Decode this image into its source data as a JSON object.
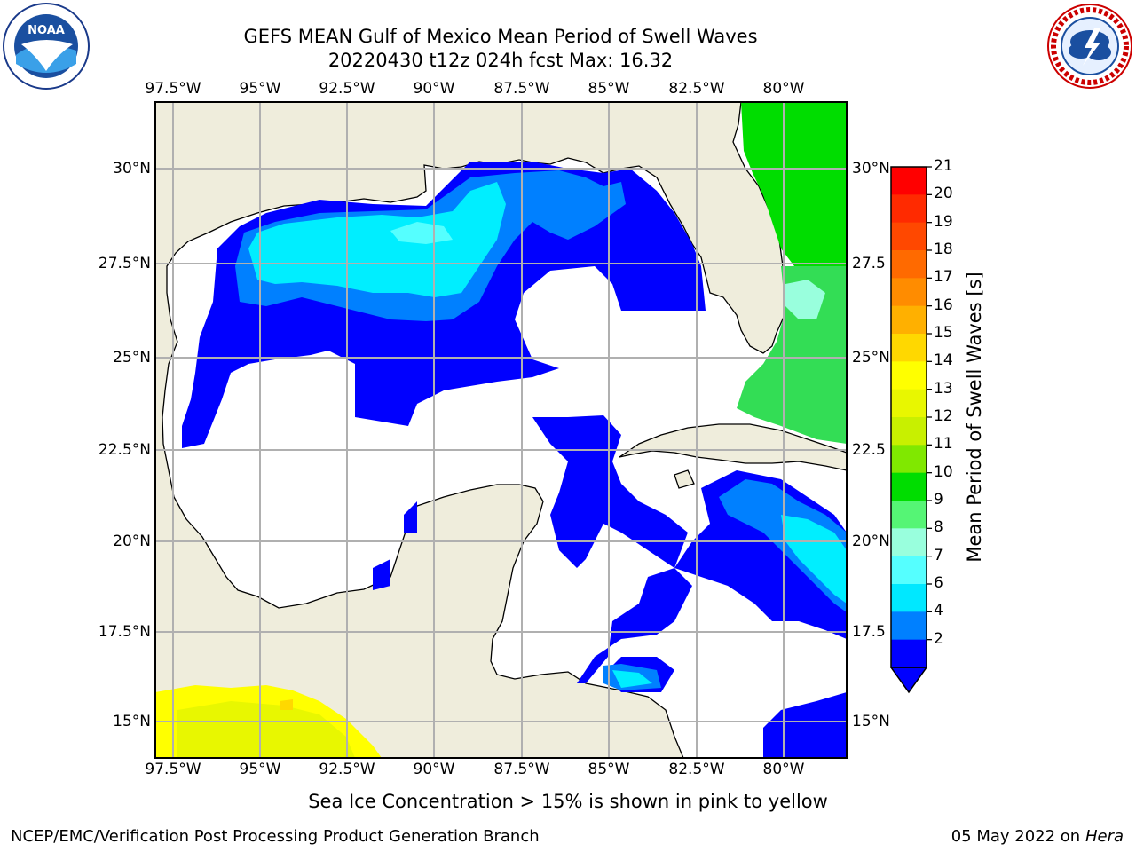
{
  "title": {
    "line1": "GEFS MEAN Gulf of Mexico Mean Period of Swell Waves",
    "line2": "20220430 t12z 024h fcst   Max: 16.32"
  },
  "axes": {
    "lon_labels": [
      "97.5°W",
      "95°W",
      "92.5°W",
      "90°W",
      "87.5°W",
      "85°W",
      "82.5°W",
      "80°W"
    ],
    "lat_labels_left": [
      "30°N",
      "27.5°N",
      "25°N",
      "22.5°N",
      "20°N",
      "17.5°N",
      "15°N"
    ],
    "lat_labels_right": [
      "30°N",
      "27.5",
      "25°N",
      "22.5",
      "20°N",
      "17.5",
      "15°N"
    ]
  },
  "colorbar": {
    "label": "Mean Period of Swell Waves [s]",
    "ticks": [
      "21",
      "20",
      "19",
      "18",
      "17",
      "16",
      "15",
      "14",
      "13",
      "12",
      "11",
      "10",
      "9",
      "8",
      "7",
      "6",
      "4",
      "2"
    ],
    "colors": [
      "#ff0000",
      "#ff2a00",
      "#ff4800",
      "#ff6a00",
      "#ff8c00",
      "#ffb000",
      "#ffd800",
      "#ffff00",
      "#e8f700",
      "#c8f000",
      "#80e800",
      "#00dd00",
      "#55f575",
      "#99ffdd",
      "#55ffff",
      "#00e8ff",
      "#0080ff",
      "#0000ff"
    ],
    "extend_color": "#0000ff"
  },
  "colors": {
    "land": "#efeddc",
    "ocean": "#ffffff",
    "grid": "#b0b0b0"
  },
  "footer": {
    "sea_ice_note": "Sea Ice Concentration > 15% is shown in pink to yellow",
    "credit": "NCEP/EMC/Verification Post Processing Product Generation Branch",
    "date": "05 May 2022 on",
    "machine": "Hera"
  },
  "logos": {
    "noaa_text": "NOAA",
    "nws_ring_text": "NATIONAL WEATHER SERVICE"
  }
}
